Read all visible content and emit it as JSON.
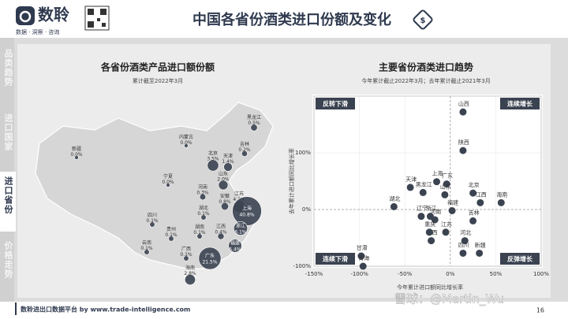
{
  "header": {
    "logo": "数聆",
    "tagline": "数据 · 洞察 · 咨询",
    "title": "中国各省份酒类进口份额及变化"
  },
  "nav": [
    "品类趋势",
    "进口国家",
    "进口省份",
    "价格走势"
  ],
  "footer": {
    "source": "数聆进出口数据平台 by www.trade-intelligence.com",
    "page": "16",
    "watermark": "雪球：@Martin_Wu"
  },
  "chart_data": [
    {
      "type": "bubble_map",
      "title": "各省份酒类产品进口额份额",
      "subtitle": "累计截至2022年3月",
      "color": "#3b4351",
      "categories": [
        "新疆",
        "内蒙古",
        "黑龙江",
        "吉林",
        "北京",
        "天津",
        "山东",
        "宁夏",
        "四川",
        "云南",
        "广西",
        "贵州",
        "湖南",
        "湖北",
        "河南",
        "安徽",
        "江苏",
        "上海",
        "浙江",
        "江西",
        "福建",
        "广东",
        "海南"
      ],
      "values": [
        0.0,
        0.0,
        0.5,
        0.2,
        3.5,
        1.4,
        2.0,
        0.0,
        0.1,
        0.1,
        0.1,
        0.1,
        0.1,
        0.1,
        0.3,
        0.8,
        4.2,
        40.8,
        6.1,
        0.4,
        5.4,
        21.5,
        2.8
      ],
      "value_labels": [
        "0.0%",
        "0.0%",
        "0.5%",
        "0.2%",
        "3.5%",
        "1.4%",
        "2.0%",
        "0.0%",
        "0.1%",
        "0.1%",
        "0.1%",
        "0.1%",
        "0.1%",
        "0.1%",
        "0.3%",
        "0.8%",
        "4.2%",
        "40.8%",
        "6.1%",
        "0.4%",
        "5.4%",
        "21.5%",
        "2.8%"
      ]
    },
    {
      "type": "scatter",
      "title": "主要省份酒类进口趋势",
      "subtitle": "今年累计截止2022年3月；去年累计截止2021年3月",
      "x_label": "今年累计进口额同比增长率",
      "y_label": "去年累计进口额同比增长率",
      "color": "#3b4351",
      "labels": [
        "山西",
        "陕西",
        "天津",
        "黑龙江",
        "上海",
        "广东",
        "山东",
        "北京",
        "江西",
        "海南",
        "湖北",
        "浙江",
        "福建",
        "辽宁",
        "河南",
        "吉林",
        "江苏",
        "广西",
        "重庆",
        "河北",
        "四川",
        "新疆",
        "甘肃",
        "青海"
      ],
      "x": [
        14,
        14,
        -44,
        -30,
        -15,
        -4,
        -6,
        25,
        33,
        56,
        -62,
        -22,
        2,
        -32,
        -17,
        25,
        -5,
        -21,
        -23,
        16,
        14,
        32,
        -98,
        -96
      ],
      "y": [
        172,
        104,
        39,
        30,
        49,
        45,
        26,
        29,
        12,
        12,
        5,
        -12,
        -2,
        -12,
        -18,
        -20,
        -40,
        -55,
        -40,
        -55,
        -77,
        -77,
        -82,
        -100
      ],
      "xlim": [
        -150,
        100
      ],
      "ylim": [
        -100,
        200
      ],
      "xticks": [
        {
          "value": -150,
          "label": "-150%"
        },
        {
          "value": -100,
          "label": "-100%"
        },
        {
          "value": -50,
          "label": "-50%"
        },
        {
          "value": 0,
          "label": "0%"
        },
        {
          "value": 50,
          "label": "50%"
        },
        {
          "value": 100,
          "label": "100%"
        }
      ],
      "yticks": [
        {
          "value": -100,
          "label": "-100%"
        },
        {
          "value": 0,
          "label": "0%"
        },
        {
          "value": 100,
          "label": "100%"
        }
      ],
      "annotations": [
        "反转下滑",
        "连续增长",
        "连续下滑",
        "反弹增长"
      ]
    }
  ]
}
